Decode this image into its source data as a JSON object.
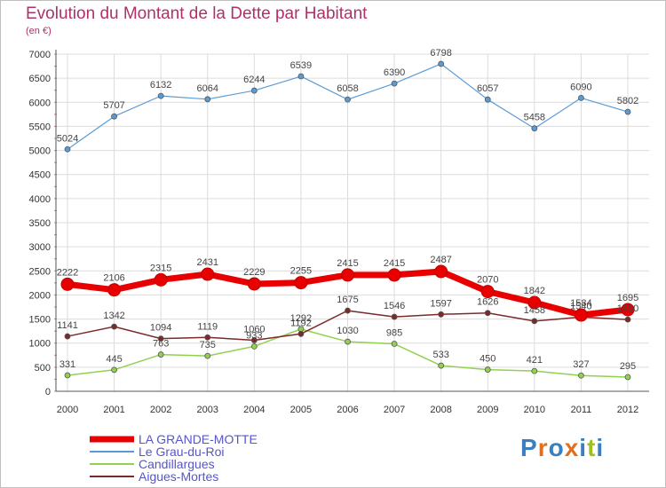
{
  "title": "Evolution du Montant de la Dette par Habitant",
  "subtitle": "(en €)",
  "chart_data": {
    "type": "line",
    "title": "Evolution du Montant de la Dette par Habitant",
    "ylabel": "(en €)",
    "xlabel": "",
    "categories": [
      "2000",
      "2001",
      "2002",
      "2003",
      "2004",
      "2005",
      "2006",
      "2007",
      "2008",
      "2009",
      "2010",
      "2011",
      "2012"
    ],
    "ylim": [
      0,
      7000
    ],
    "yticks": [
      0,
      500,
      1000,
      1500,
      2000,
      2500,
      3000,
      3500,
      4000,
      4500,
      5000,
      5500,
      6000,
      6500,
      7000
    ],
    "grid": true,
    "legend_position": "bottom-left",
    "series": [
      {
        "name": "LA GRANDE-MOTTE",
        "color": "#e80000",
        "values": [
          2222,
          2106,
          2315,
          2431,
          2229,
          2255,
          2415,
          2415,
          2487,
          2070,
          1842,
          1584,
          1695
        ]
      },
      {
        "name": "Le Grau-du-Roi",
        "color": "#5b9bd5",
        "values": [
          5024,
          5707,
          6132,
          6064,
          6244,
          6539,
          6058,
          6390,
          6798,
          6057,
          5458,
          6090,
          5802
        ]
      },
      {
        "name": "Candillargues",
        "color": "#92d050",
        "values": [
          331,
          445,
          763,
          735,
          933,
          1292,
          1030,
          985,
          533,
          450,
          421,
          327,
          295
        ]
      },
      {
        "name": "Aigues-Mortes",
        "color": "#7b2a2a",
        "values": [
          1141,
          1342,
          1094,
          1119,
          1060,
          1192,
          1675,
          1546,
          1597,
          1626,
          1458,
          1540,
          1490
        ]
      }
    ]
  },
  "logo": {
    "text": "Proxiti"
  }
}
